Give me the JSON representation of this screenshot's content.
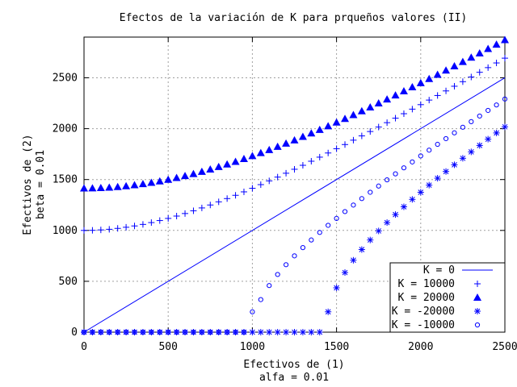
{
  "chart_data": {
    "type": "scatter",
    "title": "Efectos de la variación de K para prqueños valores (II)",
    "xlabel": "Efectivos de (1)",
    "xlabel2": "alfa = 0.01",
    "ylabel": "Efectivos de (2)",
    "ylabel2": "beta  = 0.01",
    "xlim": [
      0,
      2500
    ],
    "ylim": [
      0,
      2900
    ],
    "xticks": [
      0,
      500,
      1000,
      1500,
      2000,
      2500
    ],
    "yticks": [
      0,
      500,
      1000,
      1500,
      2000,
      2500
    ],
    "grid": true,
    "legend_position": "bottom-right",
    "series": [
      {
        "name": "K = 0",
        "marker": "line",
        "color": "#0000ff",
        "x": [
          0,
          2500
        ],
        "y": [
          0,
          2500
        ]
      },
      {
        "name": "K = 10000",
        "marker": "plus",
        "color": "#0000ff",
        "x": [
          0,
          50,
          100,
          150,
          200,
          250,
          300,
          350,
          400,
          450,
          500,
          550,
          600,
          650,
          700,
          750,
          800,
          850,
          900,
          950,
          1000,
          1050,
          1100,
          1150,
          1200,
          1250,
          1300,
          1350,
          1400,
          1450,
          1500,
          1550,
          1600,
          1650,
          1700,
          1750,
          1800,
          1850,
          1900,
          1950,
          2000,
          2050,
          2100,
          2150,
          2200,
          2250,
          2300,
          2350,
          2400,
          2450,
          2500
        ],
        "y": [
          1000,
          1001,
          1005,
          1011,
          1020,
          1031,
          1044,
          1059,
          1077,
          1097,
          1118,
          1141,
          1166,
          1193,
          1221,
          1250,
          1281,
          1313,
          1345,
          1379,
          1414,
          1450,
          1487,
          1524,
          1562,
          1601,
          1640,
          1680,
          1720,
          1761,
          1803,
          1844,
          1887,
          1929,
          1972,
          2016,
          2059,
          2103,
          2147,
          2192,
          2236,
          2281,
          2326,
          2371,
          2417,
          2462,
          2508,
          2554,
          2600,
          2646,
          2693
        ]
      },
      {
        "name": "K = 20000",
        "marker": "triangle",
        "color": "#0000ff",
        "x": [
          0,
          50,
          100,
          150,
          200,
          250,
          300,
          350,
          400,
          450,
          500,
          550,
          600,
          650,
          700,
          750,
          800,
          850,
          900,
          950,
          1000,
          1050,
          1100,
          1150,
          1200,
          1250,
          1300,
          1350,
          1400,
          1450,
          1500,
          1550,
          1600,
          1650,
          1700,
          1750,
          1800,
          1850,
          1900,
          1950,
          2000,
          2050,
          2100,
          2150,
          2200,
          2250,
          2300,
          2350,
          2400,
          2450,
          2500
        ],
        "y": [
          1414,
          1415,
          1418,
          1422,
          1428,
          1436,
          1446,
          1457,
          1470,
          1484,
          1500,
          1517,
          1536,
          1556,
          1578,
          1601,
          1625,
          1650,
          1676,
          1704,
          1732,
          1762,
          1792,
          1823,
          1855,
          1887,
          1921,
          1955,
          1990,
          2025,
          2062,
          2098,
          2135,
          2173,
          2211,
          2250,
          2289,
          2329,
          2369,
          2409,
          2449,
          2490,
          2532,
          2573,
          2615,
          2657,
          2700,
          2742,
          2785,
          2828,
          2872
        ]
      },
      {
        "name": "K = -20000",
        "marker": "star",
        "color": "#0000ff",
        "x": [
          0,
          50,
          100,
          150,
          200,
          250,
          300,
          350,
          400,
          450,
          500,
          550,
          600,
          650,
          700,
          750,
          800,
          850,
          900,
          950,
          1000,
          1050,
          1100,
          1150,
          1200,
          1250,
          1300,
          1350,
          1400,
          1450,
          1500,
          1550,
          1600,
          1650,
          1700,
          1750,
          1800,
          1850,
          1900,
          1950,
          2000,
          2050,
          2100,
          2150,
          2200,
          2250,
          2300,
          2350,
          2400,
          2450,
          2500
        ],
        "y": [
          0,
          0,
          0,
          0,
          0,
          0,
          0,
          0,
          0,
          0,
          0,
          0,
          0,
          0,
          0,
          0,
          0,
          0,
          0,
          0,
          0,
          0,
          0,
          0,
          0,
          0,
          0,
          0,
          0,
          200,
          436,
          586,
          707,
          812,
          906,
          995,
          1077,
          1156,
          1232,
          1305,
          1375,
          1445,
          1513,
          1579,
          1645,
          1709,
          1772,
          1835,
          1897,
          1958,
          2018
        ]
      },
      {
        "name": "K = -10000",
        "marker": "circle",
        "color": "#0000ff",
        "x": [
          0,
          50,
          100,
          150,
          200,
          250,
          300,
          350,
          400,
          450,
          500,
          550,
          600,
          650,
          700,
          750,
          800,
          850,
          900,
          950,
          1000,
          1050,
          1100,
          1150,
          1200,
          1250,
          1300,
          1350,
          1400,
          1450,
          1500,
          1550,
          1600,
          1650,
          1700,
          1750,
          1800,
          1850,
          1900,
          1950,
          2000,
          2050,
          2100,
          2150,
          2200,
          2250,
          2300,
          2350,
          2400,
          2450,
          2500
        ],
        "y": [
          0,
          0,
          0,
          0,
          0,
          0,
          0,
          0,
          0,
          0,
          0,
          0,
          0,
          0,
          0,
          0,
          0,
          0,
          0,
          0,
          200,
          320,
          458,
          567,
          663,
          750,
          831,
          906,
          980,
          1050,
          1118,
          1185,
          1249,
          1313,
          1375,
          1436,
          1497,
          1556,
          1615,
          1673,
          1732,
          1789,
          1846,
          1902,
          1959,
          2014,
          2069,
          2124,
          2179,
          2233,
          2291
        ]
      }
    ]
  }
}
